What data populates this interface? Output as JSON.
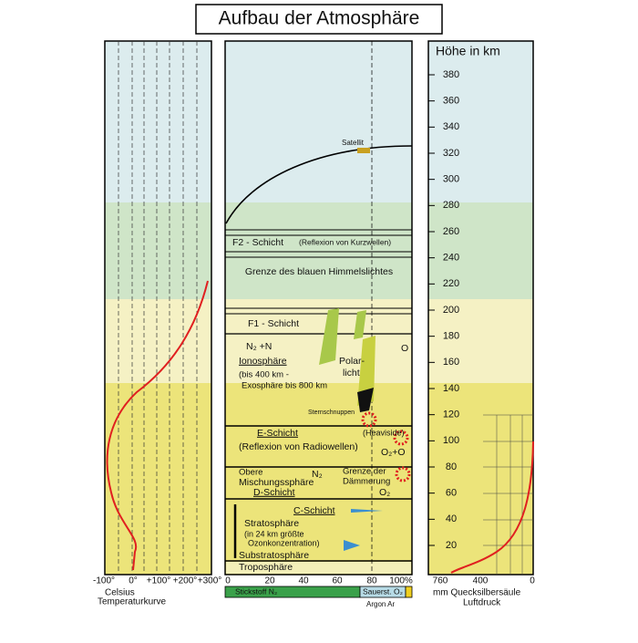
{
  "title": "Aufbau der Atmosphäre",
  "temperature_panel": {
    "ticks": [
      "-100°",
      "0°",
      "+100°",
      "+200°",
      "+300°"
    ],
    "caption": [
      "Celsius",
      "Temperaturkurve"
    ]
  },
  "layers_panel": {
    "labels": [
      "Satellit",
      "F2 - Schicht",
      "(Reflexion von Kurzwellen)",
      "Grenze des blauen Himmelslichtes",
      "F1 - Schicht",
      "N₂ +N",
      "O",
      "Ionosphäre",
      "(bis 400 km -",
      "Exosphäre bis 800 km",
      "Polar-",
      "licht",
      "Sternschnuppen",
      "E-Schicht",
      "(Heaviside)",
      "(Reflexion von Radiowellen)",
      "O₂+O",
      "Obere",
      "Mischungssphäre",
      "N₂",
      "Grenze der",
      "Dämmerung",
      "D-Schicht",
      "O₂",
      "C-Schicht",
      "Stratosphäre",
      "(in 24 km größte",
      "Ozonkonzentration)",
      "Substratosphäre",
      "Troposphäre"
    ],
    "percent_ticks": [
      "0",
      "20",
      "40",
      "60",
      "80",
      "100%"
    ],
    "composition": [
      "Stickstoff N₂",
      "Sauerst. O₂"
    ],
    "argon": "Argon Ar"
  },
  "height_panel": {
    "title": "Höhe in km",
    "ticks": [
      380,
      360,
      340,
      320,
      300,
      280,
      260,
      240,
      220,
      200,
      180,
      160,
      140,
      120,
      100,
      80,
      60,
      40,
      20
    ],
    "pressure_ticks": [
      "760",
      "400",
      "0"
    ],
    "caption": [
      "mm Quecksilbersäule",
      "Luftdruck"
    ]
  }
}
